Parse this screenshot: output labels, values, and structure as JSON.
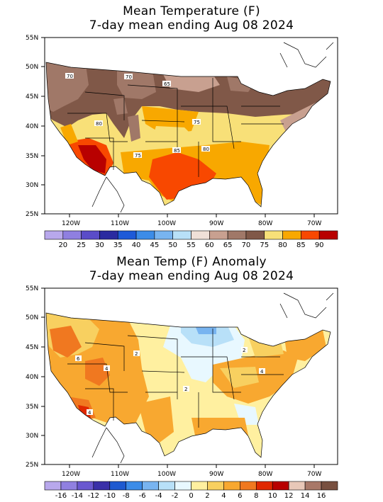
{
  "map1": {
    "title_line1": "Mean Temperature (F)",
    "title_line2": "7-day mean ending Aug 08 2024",
    "lat_labels": [
      "55N",
      "50N",
      "45N",
      "40N",
      "35N",
      "30N",
      "25N"
    ],
    "lon_labels": [
      "120W",
      "110W",
      "100W",
      "90W",
      "80W",
      "70W"
    ],
    "colorbar_labels": [
      "20",
      "25",
      "30",
      "35",
      "40",
      "45",
      "50",
      "55",
      "60",
      "65",
      "70",
      "75",
      "80",
      "85",
      "90"
    ],
    "colorbar_colors": [
      "#b8a8ec",
      "#8f7fe0",
      "#5a4cc8",
      "#2a2aa0",
      "#1e5ad8",
      "#3c8ce8",
      "#78b4f0",
      "#b8e0f8",
      "#f0e0d8",
      "#c8a090",
      "#a07868",
      "#805848",
      "#f8e078",
      "#f8a800",
      "#f84800",
      "#b80000"
    ],
    "contour_labels": [
      "70",
      "70",
      "65",
      "75",
      "80",
      "75",
      "80",
      "85"
    ]
  },
  "map2": {
    "title_line1": "Mean Temp (F) Anomaly",
    "title_line2": "7-day mean ending Aug 08 2024",
    "lat_labels": [
      "55N",
      "50N",
      "45N",
      "40N",
      "35N",
      "30N",
      "25N"
    ],
    "lon_labels": [
      "120W",
      "110W",
      "100W",
      "90W",
      "80W",
      "70W"
    ],
    "colorbar_labels": [
      "-16",
      "-14",
      "-12",
      "-10",
      "-8",
      "-6",
      "-4",
      "-2",
      "0",
      "2",
      "4",
      "6",
      "8",
      "10",
      "12",
      "14",
      "16"
    ],
    "colorbar_colors": [
      "#b8a8ec",
      "#9080e0",
      "#6a58d0",
      "#3a30a8",
      "#1e5ad0",
      "#3c8ce8",
      "#78b4f0",
      "#b8e0f8",
      "#e8f8ff",
      "#fff0a0",
      "#f8d060",
      "#f8a830",
      "#f07820",
      "#e02800",
      "#b80000",
      "#e8c8b8",
      "#a87868",
      "#785040"
    ],
    "contour_labels": [
      "6",
      "4",
      "2",
      "2",
      "4",
      "2",
      "4"
    ]
  },
  "colors": {
    "land_default": "#ffffff",
    "coast": "#000000"
  }
}
